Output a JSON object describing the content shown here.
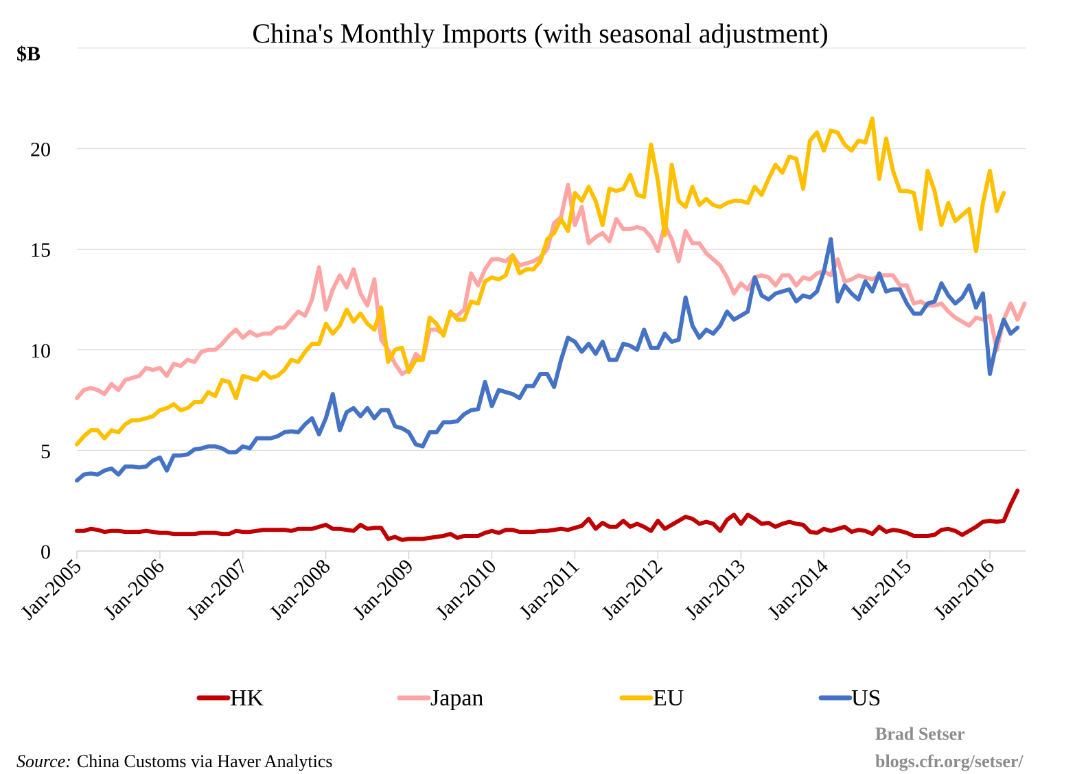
{
  "chart_data": {
    "type": "line",
    "title": "China's Monthly Imports (with seasonal adjustment)",
    "ylabel": "$B",
    "ylim": [
      0,
      25
    ],
    "yticks": [
      0,
      5,
      10,
      15,
      20
    ],
    "x_start": "Jan-2005",
    "x_labels": [
      "Jan-2005",
      "Jan-2006",
      "Jan-2007",
      "Jan-2008",
      "Jan-2009",
      "Jan-2010",
      "Jan-2011",
      "Jan-2012",
      "Jan-2013",
      "Jan-2014",
      "Jan-2015",
      "Jan-2016"
    ],
    "grid": true,
    "legend_position": "bottom",
    "series": [
      {
        "name": "HK",
        "color": "#c00000",
        "values": [
          1.0,
          1.0,
          1.1,
          1.05,
          0.95,
          1.0,
          1.0,
          0.95,
          0.95,
          0.95,
          1.0,
          0.95,
          0.9,
          0.9,
          0.85,
          0.85,
          0.85,
          0.85,
          0.9,
          0.9,
          0.9,
          0.85,
          0.85,
          1.0,
          0.95,
          0.95,
          1.0,
          1.05,
          1.05,
          1.05,
          1.05,
          1.0,
          1.1,
          1.1,
          1.1,
          1.2,
          1.3,
          1.1,
          1.1,
          1.05,
          1.0,
          1.3,
          1.1,
          1.15,
          1.15,
          0.6,
          0.7,
          0.55,
          0.6,
          0.6,
          0.6,
          0.65,
          0.7,
          0.75,
          0.85,
          0.65,
          0.75,
          0.75,
          0.75,
          0.9,
          1.0,
          0.9,
          1.05,
          1.05,
          0.95,
          0.95,
          0.95,
          1.0,
          1.0,
          1.05,
          1.1,
          1.05,
          1.15,
          1.25,
          1.6,
          1.1,
          1.4,
          1.2,
          1.2,
          1.5,
          1.2,
          1.35,
          1.2,
          1.0,
          1.5,
          1.1,
          1.3,
          1.5,
          1.7,
          1.6,
          1.35,
          1.45,
          1.35,
          1.0,
          1.55,
          1.8,
          1.35,
          1.8,
          1.6,
          1.35,
          1.4,
          1.2,
          1.35,
          1.45,
          1.35,
          1.3,
          0.95,
          0.9,
          1.1,
          1.0,
          1.1,
          1.2,
          0.95,
          1.05,
          1.0,
          0.85,
          1.2,
          0.95,
          1.05,
          1.0,
          0.9,
          0.75,
          0.75,
          0.75,
          0.8,
          1.05,
          1.1,
          1.0,
          0.8,
          1.0,
          1.2,
          1.45,
          1.5,
          1.45,
          1.5,
          2.3,
          3.0
        ]
      },
      {
        "name": "Japan",
        "color": "#ffa5a5",
        "values": [
          7.6,
          8.0,
          8.1,
          8.0,
          7.8,
          8.3,
          8.0,
          8.5,
          8.6,
          8.7,
          9.1,
          9.0,
          9.1,
          8.7,
          9.3,
          9.2,
          9.5,
          9.4,
          9.9,
          10.0,
          10.0,
          10.3,
          10.7,
          11.0,
          10.6,
          10.9,
          10.7,
          10.8,
          10.8,
          11.1,
          11.1,
          11.5,
          11.9,
          11.7,
          12.5,
          14.1,
          12.0,
          13.0,
          13.7,
          13.1,
          14.0,
          12.8,
          12.2,
          13.5,
          10.5,
          10.0,
          9.3,
          8.8,
          9.0,
          9.8,
          9.5,
          11.0,
          11.0,
          10.8,
          11.8,
          11.7,
          12.0,
          13.8,
          13.2,
          14.0,
          14.5,
          14.5,
          14.4,
          14.7,
          14.2,
          14.3,
          14.4,
          14.6,
          15.0,
          16.3,
          16.6,
          18.2,
          16.2,
          17.1,
          15.3,
          15.6,
          15.8,
          15.4,
          16.5,
          16.0,
          16.0,
          16.1,
          16.0,
          15.6,
          14.9,
          16.2,
          15.5,
          14.4,
          15.9,
          15.3,
          15.3,
          14.8,
          14.5,
          14.2,
          13.6,
          12.8,
          13.3,
          13.0,
          13.6,
          13.7,
          13.6,
          13.2,
          13.7,
          13.7,
          13.2,
          13.6,
          13.5,
          13.8,
          13.9,
          13.7,
          14.5,
          13.4,
          13.5,
          13.7,
          13.6,
          13.5,
          13.7,
          13.7,
          13.7,
          13.2,
          13.2,
          12.3,
          12.4,
          12.2,
          12.2,
          12.3,
          11.9,
          11.6,
          11.4,
          11.2,
          11.6,
          11.5,
          11.7,
          10.0,
          11.5,
          12.3,
          11.5,
          12.3
        ]
      },
      {
        "name": "EU",
        "color": "#ffc000",
        "values": [
          5.3,
          5.7,
          6.0,
          6.0,
          5.6,
          6.0,
          5.9,
          6.3,
          6.5,
          6.5,
          6.6,
          6.7,
          7.0,
          7.1,
          7.3,
          7.0,
          7.1,
          7.4,
          7.4,
          7.9,
          7.7,
          8.5,
          8.4,
          7.6,
          8.7,
          8.6,
          8.5,
          8.9,
          8.6,
          8.7,
          9.0,
          9.5,
          9.4,
          9.9,
          10.3,
          10.3,
          11.3,
          10.8,
          11.2,
          12.0,
          11.4,
          11.8,
          11.3,
          11.0,
          12.1,
          9.4,
          10.0,
          10.1,
          8.9,
          9.5,
          9.5,
          11.6,
          11.3,
          10.7,
          11.9,
          11.5,
          11.5,
          12.4,
          12.3,
          13.4,
          13.6,
          13.5,
          13.7,
          14.7,
          13.8,
          14.0,
          14.0,
          14.4,
          15.5,
          15.8,
          16.5,
          15.9,
          17.8,
          17.4,
          18.1,
          17.4,
          16.2,
          18.0,
          17.9,
          18.0,
          18.7,
          17.7,
          17.6,
          20.2,
          18.4,
          15.7,
          19.2,
          17.4,
          17.1,
          18.1,
          17.2,
          17.5,
          17.2,
          17.1,
          17.3,
          17.4,
          17.4,
          17.3,
          18.1,
          17.7,
          18.5,
          19.2,
          18.8,
          19.6,
          19.5,
          18.0,
          20.4,
          20.8,
          19.9,
          20.9,
          20.8,
          20.2,
          19.9,
          20.4,
          20.3,
          21.5,
          18.5,
          20.5,
          18.9,
          17.9,
          17.9,
          17.8,
          16.0,
          18.9,
          17.9,
          16.2,
          17.3,
          16.4,
          16.7,
          17.0,
          14.9,
          17.3,
          18.9,
          16.9,
          17.8
        ]
      },
      {
        "name": "US",
        "color": "#4472c4",
        "values": [
          3.5,
          3.8,
          3.85,
          3.8,
          4.0,
          4.1,
          3.8,
          4.2,
          4.2,
          4.15,
          4.2,
          4.5,
          4.65,
          4.0,
          4.75,
          4.75,
          4.8,
          5.05,
          5.1,
          5.2,
          5.2,
          5.1,
          4.9,
          4.9,
          5.2,
          5.1,
          5.6,
          5.6,
          5.6,
          5.7,
          5.9,
          5.95,
          5.9,
          6.3,
          6.6,
          5.8,
          6.6,
          7.8,
          6.0,
          6.9,
          7.1,
          6.7,
          7.1,
          6.6,
          7.0,
          7.0,
          6.2,
          6.1,
          5.9,
          5.3,
          5.2,
          5.9,
          5.9,
          6.4,
          6.4,
          6.45,
          6.8,
          7.0,
          7.05,
          8.4,
          7.2,
          8.0,
          7.9,
          7.8,
          7.6,
          8.2,
          8.2,
          8.8,
          8.8,
          8.15,
          9.5,
          10.6,
          10.4,
          9.9,
          10.3,
          9.8,
          10.4,
          9.5,
          9.5,
          10.3,
          10.2,
          10.0,
          11.0,
          10.1,
          10.1,
          10.8,
          10.4,
          10.5,
          12.6,
          11.2,
          10.6,
          11.0,
          10.8,
          11.2,
          11.9,
          11.5,
          11.7,
          11.9,
          13.6,
          12.7,
          12.5,
          12.8,
          12.9,
          13.0,
          12.4,
          12.7,
          12.6,
          12.9,
          13.9,
          15.5,
          12.4,
          13.2,
          12.8,
          12.5,
          13.4,
          12.9,
          13.8,
          12.9,
          13.0,
          13.0,
          12.3,
          11.8,
          11.8,
          12.3,
          12.4,
          13.3,
          12.7,
          12.3,
          12.6,
          13.2,
          12.1,
          12.8,
          8.8,
          10.4,
          11.5,
          10.8,
          11.1
        ]
      }
    ]
  },
  "legend": {
    "items": [
      "HK",
      "Japan",
      "EU",
      "US"
    ]
  },
  "footer": {
    "source_label": "Source:",
    "source_text": "China Customs via Haver Analytics",
    "credit_line1": "Brad Setser",
    "credit_line2": "blogs.cfr.org/setser/"
  }
}
